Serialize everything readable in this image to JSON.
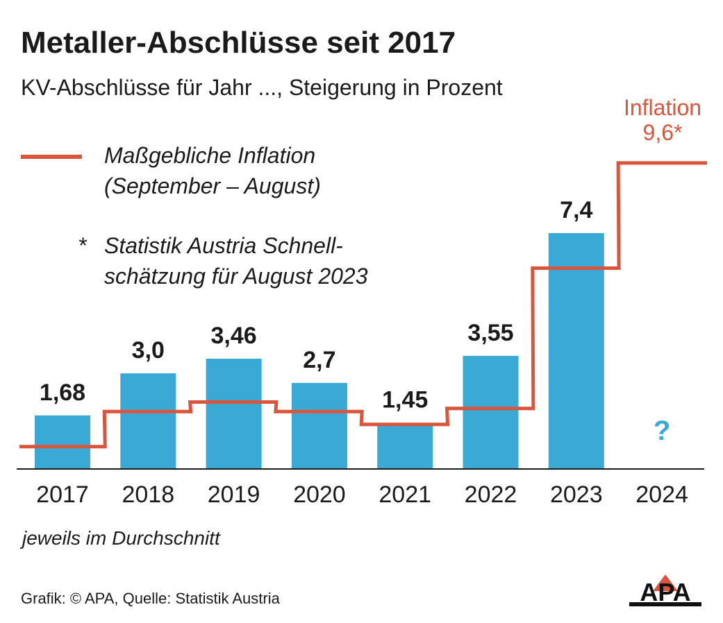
{
  "header": {
    "title": "Metaller-Abschlüsse seit 2017",
    "subtitle": "KV-Abschlüsse für Jahr ..., Steigerung in Prozent"
  },
  "legend": {
    "line_label_1": "Maßgebliche Inflation",
    "line_label_2": "(September – August)",
    "star": "*",
    "note_1": "Statistik Austria Schnell-",
    "note_2": "schätzung für August 2023"
  },
  "footnote": "jeweils im Durchschnitt",
  "source": "Grafik: © APA, Quelle: Statistik Austria",
  "logo_text": "APA",
  "colors": {
    "bar": "#3aa9d6",
    "inflation": "#d9553c",
    "text": "#1a1a1a",
    "question": "#3aa9d6"
  },
  "chart_data": {
    "type": "bar",
    "categories": [
      "2017",
      "2018",
      "2019",
      "2020",
      "2021",
      "2022",
      "2023",
      "2024"
    ],
    "series": [
      {
        "name": "KV-Abschlüsse",
        "values": [
          1.68,
          3.0,
          3.46,
          2.7,
          1.45,
          3.55,
          7.4,
          null
        ],
        "labels": [
          "1,68",
          "3,0",
          "3,46",
          "2,7",
          "1,45",
          "3,55",
          "7,4",
          "?"
        ]
      },
      {
        "name": "Maßgebliche Inflation (September – August)",
        "type": "step-line",
        "values": [
          0.7,
          1.8,
          2.1,
          1.8,
          1.4,
          1.9,
          6.3,
          9.6
        ]
      }
    ],
    "inflation_annotation": {
      "line1": "Inflation",
      "line2": "9,6*"
    },
    "ylim": [
      0,
      10
    ],
    "grid": false
  }
}
